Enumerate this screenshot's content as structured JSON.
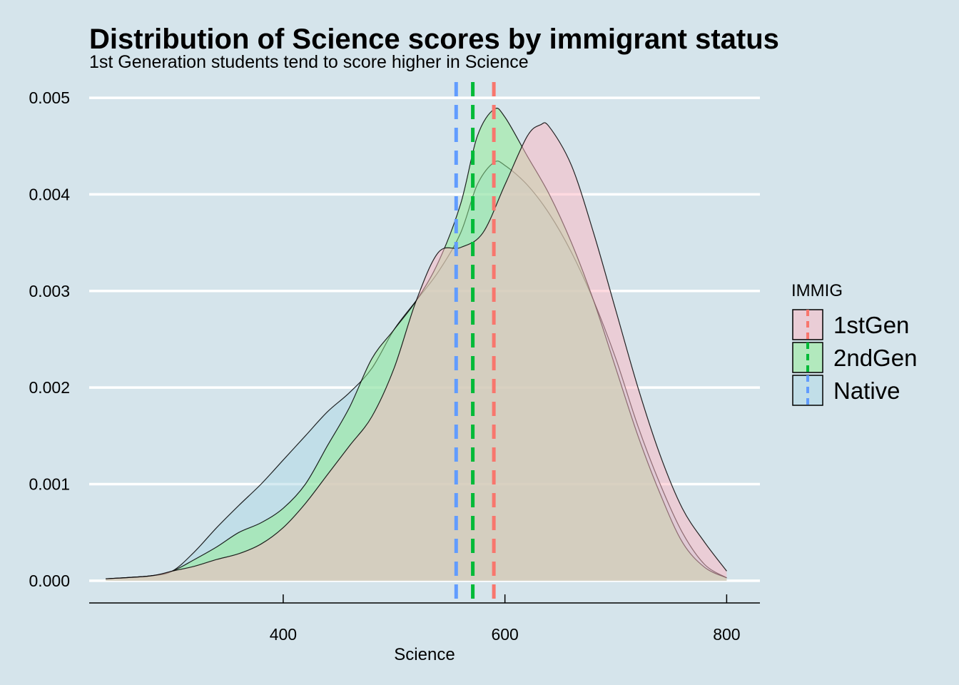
{
  "chart_data": {
    "type": "area",
    "title": "Distribution of Science scores by immigrant status",
    "subtitle": "1st Generation students tend to score higher in Science",
    "xlabel": "Science",
    "ylabel": "",
    "xlim": [
      225,
      830
    ],
    "ylim": [
      -0.00023,
      0.0052
    ],
    "x_ticks": [
      400,
      600,
      800
    ],
    "x_tick_labels": [
      "400",
      "600",
      "800"
    ],
    "y_ticks": [
      0,
      0.001,
      0.002,
      0.003,
      0.004,
      0.005
    ],
    "y_tick_labels": [
      "0.000",
      "0.001",
      "0.002",
      "0.003",
      "0.004",
      "0.005"
    ],
    "grid": "horizontal",
    "legend": {
      "title": "IMMIG",
      "position": "right"
    },
    "series": [
      {
        "name": "Native",
        "fill": "#add8e6",
        "line": "#619cff",
        "mean": 556,
        "points": [
          [
            240,
            2e-05
          ],
          [
            280,
            5e-05
          ],
          [
            300,
            0.0001
          ],
          [
            320,
            0.0003
          ],
          [
            340,
            0.00055
          ],
          [
            360,
            0.00078
          ],
          [
            380,
            0.001
          ],
          [
            400,
            0.00125
          ],
          [
            420,
            0.0015
          ],
          [
            440,
            0.00175
          ],
          [
            460,
            0.00195
          ],
          [
            480,
            0.0022
          ],
          [
            500,
            0.0026
          ],
          [
            520,
            0.0029
          ],
          [
            540,
            0.0032
          ],
          [
            560,
            0.0036
          ],
          [
            575,
            0.0041
          ],
          [
            590,
            0.00433
          ],
          [
            600,
            0.0043
          ],
          [
            620,
            0.0041
          ],
          [
            640,
            0.0038
          ],
          [
            660,
            0.0034
          ],
          [
            680,
            0.0029
          ],
          [
            700,
            0.0023
          ],
          [
            720,
            0.0016
          ],
          [
            740,
            0.001
          ],
          [
            760,
            0.0005
          ],
          [
            780,
            0.00017
          ],
          [
            800,
            3e-05
          ]
        ]
      },
      {
        "name": "2ndGen",
        "fill": "#90ee90",
        "line": "#00ba38",
        "mean": 571,
        "points": [
          [
            240,
            2e-05
          ],
          [
            280,
            5e-05
          ],
          [
            300,
            0.0001
          ],
          [
            320,
            0.00022
          ],
          [
            340,
            0.00035
          ],
          [
            360,
            0.0005
          ],
          [
            380,
            0.0006
          ],
          [
            400,
            0.00075
          ],
          [
            420,
            0.001
          ],
          [
            440,
            0.0014
          ],
          [
            460,
            0.0018
          ],
          [
            480,
            0.0023
          ],
          [
            500,
            0.0026
          ],
          [
            520,
            0.0029
          ],
          [
            540,
            0.0033
          ],
          [
            560,
            0.0039
          ],
          [
            575,
            0.0046
          ],
          [
            590,
            0.00488
          ],
          [
            600,
            0.0048
          ],
          [
            620,
            0.0044
          ],
          [
            640,
            0.004
          ],
          [
            660,
            0.0035
          ],
          [
            680,
            0.0029
          ],
          [
            700,
            0.0022
          ],
          [
            720,
            0.0015
          ],
          [
            740,
            0.0009
          ],
          [
            760,
            0.0004
          ],
          [
            780,
            0.00014
          ],
          [
            800,
            3e-05
          ]
        ]
      },
      {
        "name": "1stGen",
        "fill": "#ffb6c1",
        "line": "#f8766d",
        "mean": 590,
        "points": [
          [
            240,
            2e-05
          ],
          [
            280,
            5e-05
          ],
          [
            300,
            0.0001
          ],
          [
            320,
            0.00015
          ],
          [
            340,
            0.00022
          ],
          [
            360,
            0.00028
          ],
          [
            380,
            0.00038
          ],
          [
            400,
            0.00055
          ],
          [
            420,
            0.0008
          ],
          [
            440,
            0.0011
          ],
          [
            460,
            0.0014
          ],
          [
            480,
            0.0017
          ],
          [
            500,
            0.0022
          ],
          [
            520,
            0.0029
          ],
          [
            540,
            0.0034
          ],
          [
            560,
            0.00345
          ],
          [
            580,
            0.0036
          ],
          [
            600,
            0.0041
          ],
          [
            620,
            0.0046
          ],
          [
            632,
            0.00472
          ],
          [
            640,
            0.0047
          ],
          [
            660,
            0.0043
          ],
          [
            680,
            0.0036
          ],
          [
            700,
            0.0028
          ],
          [
            720,
            0.002
          ],
          [
            740,
            0.0013
          ],
          [
            760,
            0.00075
          ],
          [
            780,
            0.0004
          ],
          [
            800,
            0.0001
          ]
        ]
      }
    ]
  }
}
